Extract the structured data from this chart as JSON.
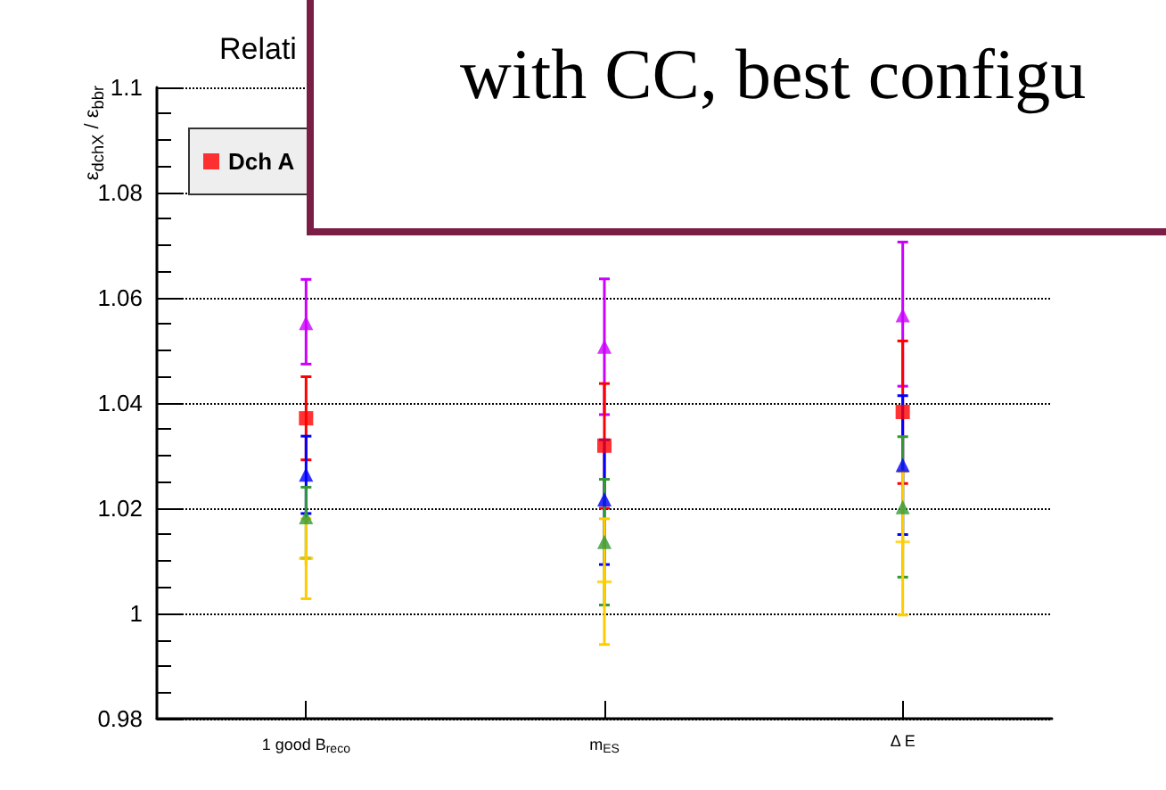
{
  "chart_data": {
    "type": "scatter",
    "title": "Relati",
    "ylabel": "ε$_{dchX}$ / ε$_{bbr}$",
    "categories": [
      "1 good B$_{reco}$",
      "m$_{ES}$",
      "Δ E"
    ],
    "series": [
      {
        "color": "#cc00ff",
        "marker": "triangle",
        "values": [
          1.0552,
          1.0507,
          1.0567
        ],
        "errors": [
          [
            1.0474,
            1.0635
          ],
          [
            1.0378,
            1.0636
          ],
          [
            1.0432,
            1.0706
          ]
        ]
      },
      {
        "name": "Dch A",
        "color": "#ff0000",
        "marker": "square",
        "values": [
          1.0371,
          1.0319,
          1.0383
        ],
        "errors": [
          [
            1.0292,
            1.045
          ],
          [
            1.02,
            1.0437
          ],
          [
            1.0247,
            1.0518
          ]
        ]
      },
      {
        "color": "#0000ff",
        "marker": "triangle",
        "values": [
          1.0264,
          1.0217,
          1.0282
        ],
        "errors": [
          [
            1.019,
            1.0337
          ],
          [
            1.0093,
            1.033
          ],
          [
            1.015,
            1.0414
          ]
        ]
      },
      {
        "color": "#339933",
        "marker": "triangle",
        "values": [
          1.0183,
          1.0136,
          1.0202
        ],
        "errors": [
          [
            1.0105,
            1.024
          ],
          [
            1.0016,
            1.0255
          ],
          [
            1.0069,
            1.0336
          ]
        ]
      },
      {
        "color": "#ffcc00",
        "marker": "cross",
        "values": [
          1.0105,
          1.006,
          1.0136
        ],
        "errors": [
          [
            1.0028,
            1.018
          ],
          [
            0.9941,
            1.018
          ],
          [
            0.9997,
            1.027
          ]
        ]
      }
    ],
    "ylim": [
      0.98,
      1.1
    ],
    "yticks": [
      0.98,
      1,
      1.02,
      1.04,
      1.06,
      1.08,
      1.1
    ],
    "grid": "y",
    "legend": "top left",
    "annotations": [
      "with CC, best configu"
    ]
  }
}
